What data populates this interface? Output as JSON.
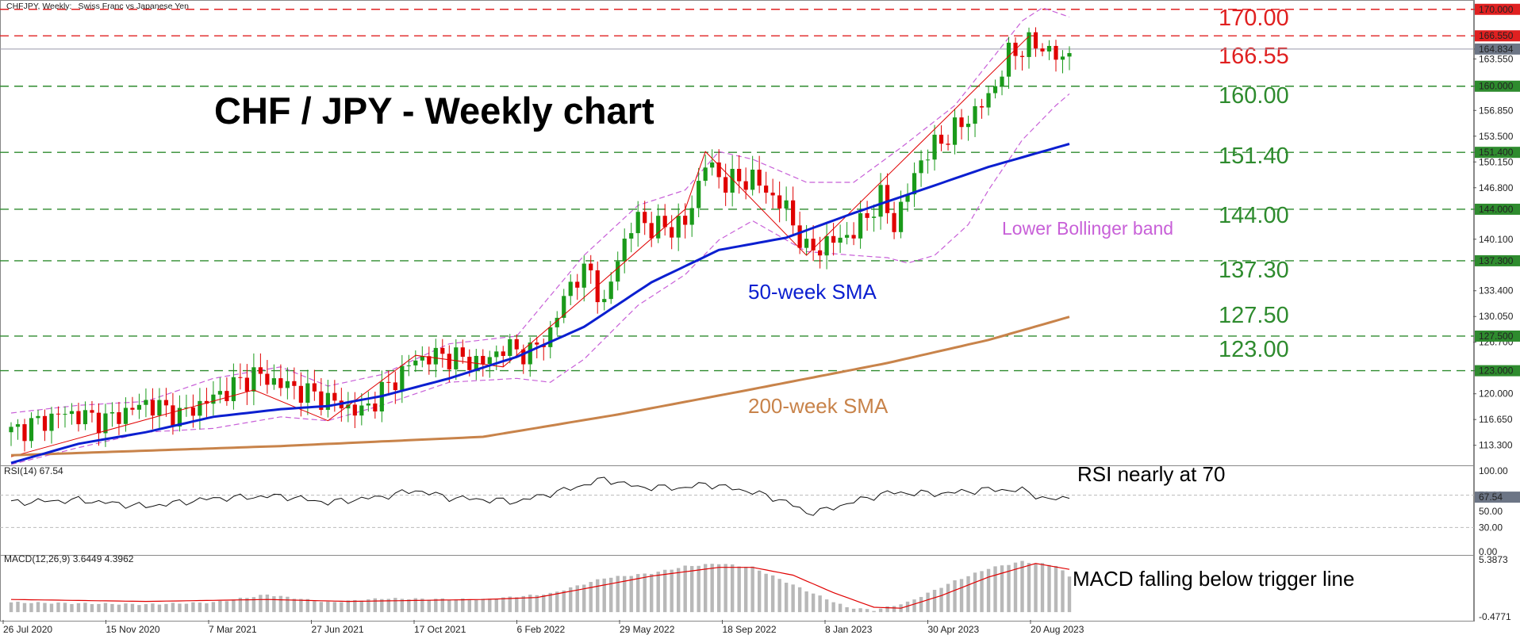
{
  "header": {
    "symbol_text": "CHFJPY, Weekly:",
    "description": "Swiss Franc vs Japanese Yen"
  },
  "colors": {
    "bull": "#1a9a1a",
    "bear": "#e00000",
    "sma50": "#0b1fd0",
    "sma200": "#c8834a",
    "bollinger": "#c860d8",
    "support": "#2e8b2e",
    "resistance": "#e02020",
    "rsi_line": "#111111",
    "macd_hist": "#b8b8b8",
    "macd_signal": "#e00000"
  },
  "chart_data": [
    {
      "type": "candlestick",
      "title": "CHF / JPY - Weekly chart",
      "pair": "CHFJPY",
      "timeframe": "Weekly",
      "ylim": [
        111,
        170.8
      ],
      "current_price": "164.834",
      "y_ticks": [
        "113.300",
        "116.650",
        "120.000",
        "123.000",
        "126.700",
        "130.050",
        "133.400",
        "137.300",
        "140.100",
        "144.000",
        "146.800",
        "150.150",
        "151.400",
        "153.500",
        "156.850",
        "160.000",
        "163.550",
        "164.834",
        "166.550",
        "170.000"
      ],
      "x_tick_labels": [
        "26 Jul 2020",
        "15 Nov 2020",
        "7 Mar 2021",
        "27 Jun 2021",
        "17 Oct 2021",
        "6 Feb 2022",
        "29 May 2022",
        "18 Sep 2022",
        "8 Jan 2023",
        "30 Apr 2023",
        "20 Aug 2023"
      ],
      "levels": [
        {
          "value": 170.0,
          "label": "170.00",
          "axis_label": "170.000",
          "kind": "resistance"
        },
        {
          "value": 166.55,
          "label": "166.55",
          "axis_label": "166.550",
          "kind": "resistance"
        },
        {
          "value": 160.0,
          "label": "160.00",
          "axis_label": "160.000",
          "kind": "support"
        },
        {
          "value": 151.4,
          "label": "151.40",
          "axis_label": "151.400",
          "kind": "support"
        },
        {
          "value": 144.0,
          "label": "144.00",
          "axis_label": "144.000",
          "kind": "support"
        },
        {
          "value": 137.3,
          "label": "137.30",
          "axis_label": "137.300",
          "kind": "support"
        },
        {
          "value": 127.5,
          "label": "127.50",
          "axis_label": "127.500",
          "kind": "support"
        },
        {
          "value": 123.0,
          "label": "123.00",
          "axis_label": "123.000",
          "kind": "support"
        }
      ],
      "close_anchors": [
        [
          0,
          115.0
        ],
        [
          8,
          117.5
        ],
        [
          14,
          116.5
        ],
        [
          20,
          118.8
        ],
        [
          25,
          117.2
        ],
        [
          30,
          119.5
        ],
        [
          36,
          122.5
        ],
        [
          41,
          121.0
        ],
        [
          47,
          119.2
        ],
        [
          52,
          117.6
        ],
        [
          55,
          120.2
        ],
        [
          60,
          124.5
        ],
        [
          64,
          125.0
        ],
        [
          70,
          124.0
        ],
        [
          73,
          126.0
        ],
        [
          77,
          125.3
        ],
        [
          80,
          128.0
        ],
        [
          83,
          134.5
        ],
        [
          86,
          136.0
        ],
        [
          88,
          131.0
        ],
        [
          90,
          138.0
        ],
        [
          93,
          143.0
        ],
        [
          95,
          141.5
        ],
        [
          100,
          142.0
        ],
        [
          103,
          150.0
        ],
        [
          106,
          147.5
        ],
        [
          110,
          148.0
        ],
        [
          115,
          144.0
        ],
        [
          118,
          138.5
        ],
        [
          121,
          139.5
        ],
        [
          125,
          141.0
        ],
        [
          129,
          145.5
        ],
        [
          131,
          142.0
        ],
        [
          135,
          150.5
        ],
        [
          138,
          153.0
        ],
        [
          141,
          155.0
        ],
        [
          145,
          158.5
        ],
        [
          148,
          164.0
        ],
        [
          151,
          165.5
        ],
        [
          154,
          164.8
        ],
        [
          156,
          163.0
        ],
        [
          157,
          164.8
        ]
      ],
      "sma50_anchors": [
        [
          0,
          111.0
        ],
        [
          10,
          113.5
        ],
        [
          20,
          115.0
        ],
        [
          30,
          117.0
        ],
        [
          40,
          118.0
        ],
        [
          47,
          118.4
        ],
        [
          55,
          119.7
        ],
        [
          65,
          122.0
        ],
        [
          75,
          124.8
        ],
        [
          85,
          128.7
        ],
        [
          95,
          134.5
        ],
        [
          105,
          138.7
        ],
        [
          115,
          140.3
        ],
        [
          125,
          143.5
        ],
        [
          135,
          146.5
        ],
        [
          145,
          149.5
        ],
        [
          157,
          152.5
        ]
      ],
      "sma200_anchors": [
        [
          0,
          112.0
        ],
        [
          40,
          113.2
        ],
        [
          70,
          114.4
        ],
        [
          90,
          117.3
        ],
        [
          110,
          120.6
        ],
        [
          130,
          124.0
        ],
        [
          145,
          127.0
        ],
        [
          157,
          130.0
        ]
      ],
      "upper_band_anchors": [
        [
          0,
          117.5
        ],
        [
          10,
          118.5
        ],
        [
          20,
          119.0
        ],
        [
          30,
          122.0
        ],
        [
          40,
          123.5
        ],
        [
          47,
          121.0
        ],
        [
          55,
          122.5
        ],
        [
          65,
          126.5
        ],
        [
          75,
          127.5
        ],
        [
          85,
          138.0
        ],
        [
          93,
          144.5
        ],
        [
          100,
          146.5
        ],
        [
          105,
          151.5
        ],
        [
          110,
          150.5
        ],
        [
          118,
          147.5
        ],
        [
          125,
          147.5
        ],
        [
          132,
          152.0
        ],
        [
          140,
          157.5
        ],
        [
          145,
          163.0
        ],
        [
          150,
          168.5
        ],
        [
          153,
          170.2
        ],
        [
          157,
          169.0
        ]
      ],
      "lower_band_anchors": [
        [
          0,
          110.8
        ],
        [
          10,
          113.0
        ],
        [
          20,
          115.0
        ],
        [
          30,
          115.5
        ],
        [
          40,
          117.0
        ],
        [
          47,
          116.5
        ],
        [
          55,
          118.5
        ],
        [
          65,
          121.5
        ],
        [
          75,
          122.0
        ],
        [
          80,
          121.5
        ],
        [
          85,
          124.5
        ],
        [
          93,
          131.5
        ],
        [
          100,
          135.5
        ],
        [
          105,
          140.0
        ],
        [
          110,
          142.5
        ],
        [
          118,
          138.5
        ],
        [
          125,
          138.0
        ],
        [
          130,
          137.7
        ],
        [
          133,
          137.0
        ],
        [
          137,
          138.0
        ],
        [
          142,
          142.0
        ],
        [
          145,
          146.5
        ],
        [
          150,
          153.0
        ],
        [
          155,
          157.5
        ],
        [
          157,
          159.0
        ]
      ],
      "annotations": [
        {
          "text": "50-week SMA",
          "target": "sma50"
        },
        {
          "text": "200-week SMA",
          "target": "sma200"
        },
        {
          "text": "Lower Bollinger band",
          "target": "lower_band"
        }
      ]
    },
    {
      "type": "line",
      "indicator": "RSI",
      "header": "RSI(14) 67.54",
      "ylim": [
        0,
        100
      ],
      "y_ticks": [
        "100.00",
        "70.00",
        "50.00",
        "30.00",
        "0.00"
      ],
      "value_label": "67.54",
      "anchors": [
        [
          0,
          61
        ],
        [
          10,
          64
        ],
        [
          20,
          56
        ],
        [
          30,
          66
        ],
        [
          40,
          69
        ],
        [
          47,
          61
        ],
        [
          55,
          68
        ],
        [
          60,
          76
        ],
        [
          65,
          67
        ],
        [
          75,
          62
        ],
        [
          83,
          78
        ],
        [
          88,
          90
        ],
        [
          93,
          80
        ],
        [
          100,
          79
        ],
        [
          103,
          84
        ],
        [
          110,
          74
        ],
        [
          115,
          62
        ],
        [
          118,
          48
        ],
        [
          121,
          52
        ],
        [
          125,
          62
        ],
        [
          130,
          73
        ],
        [
          138,
          72
        ],
        [
          145,
          77
        ],
        [
          150,
          76
        ],
        [
          154,
          64
        ],
        [
          157,
          67.54
        ]
      ],
      "annotation": "RSI nearly at 70"
    },
    {
      "type": "bar",
      "indicator": "MACD",
      "header": "MACD(12,26,9) 3.6449 4.3962",
      "ylim": [
        -0.4771,
        5.3873
      ],
      "y_ticks": [
        "5.3873",
        "-0.4771"
      ],
      "macd_value": 3.6449,
      "signal_value": 4.3962,
      "hist_anchors": [
        [
          0,
          1.0
        ],
        [
          20,
          0.8
        ],
        [
          30,
          1.0
        ],
        [
          38,
          1.8
        ],
        [
          47,
          1.0
        ],
        [
          55,
          1.4
        ],
        [
          70,
          1.3
        ],
        [
          80,
          1.9
        ],
        [
          88,
          3.5
        ],
        [
          95,
          4.0
        ],
        [
          100,
          4.7
        ],
        [
          105,
          5.0
        ],
        [
          110,
          4.6
        ],
        [
          118,
          2.2
        ],
        [
          124,
          0.5
        ],
        [
          128,
          0.2
        ],
        [
          133,
          1.0
        ],
        [
          140,
          3.2
        ],
        [
          145,
          4.5
        ],
        [
          150,
          5.2
        ],
        [
          155,
          4.8
        ],
        [
          157,
          3.6449
        ]
      ],
      "signal_anchors": [
        [
          0,
          1.3
        ],
        [
          20,
          1.1
        ],
        [
          38,
          1.3
        ],
        [
          50,
          1.1
        ],
        [
          60,
          1.2
        ],
        [
          70,
          1.3
        ],
        [
          78,
          1.5
        ],
        [
          85,
          2.4
        ],
        [
          95,
          3.7
        ],
        [
          105,
          4.6
        ],
        [
          110,
          4.6
        ],
        [
          116,
          3.8
        ],
        [
          122,
          2.0
        ],
        [
          128,
          0.5
        ],
        [
          132,
          0.4
        ],
        [
          138,
          1.7
        ],
        [
          145,
          3.6
        ],
        [
          152,
          5.0
        ],
        [
          157,
          4.3962
        ]
      ],
      "annotation": "MACD falling below trigger line"
    }
  ]
}
